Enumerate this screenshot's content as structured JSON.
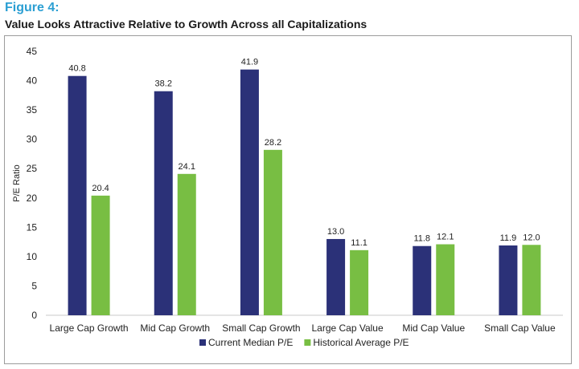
{
  "figure": {
    "label": "Figure 4:",
    "title": "Value Looks Attractive Relative to Growth Across all Capitalizations"
  },
  "chart_data": {
    "type": "bar",
    "categories": [
      "Large Cap Growth",
      "Mid Cap Growth",
      "Small Cap Growth",
      "Large Cap Value",
      "Mid Cap Value",
      "Small Cap Value"
    ],
    "series": [
      {
        "name": "Current Median P/E",
        "color": "#2b3178",
        "values": [
          40.8,
          38.2,
          41.9,
          13.0,
          11.8,
          11.9
        ]
      },
      {
        "name": "Historical Average P/E",
        "color": "#78be43",
        "values": [
          20.4,
          24.1,
          28.2,
          11.1,
          12.1,
          12.0
        ]
      }
    ],
    "xlabel": "",
    "ylabel": "P/E Ratio",
    "ylim": [
      0,
      45
    ],
    "yticks": [
      0,
      5,
      10,
      15,
      20,
      25,
      30,
      35,
      40,
      45
    ],
    "grid": false,
    "legend_position": "bottom-center"
  }
}
